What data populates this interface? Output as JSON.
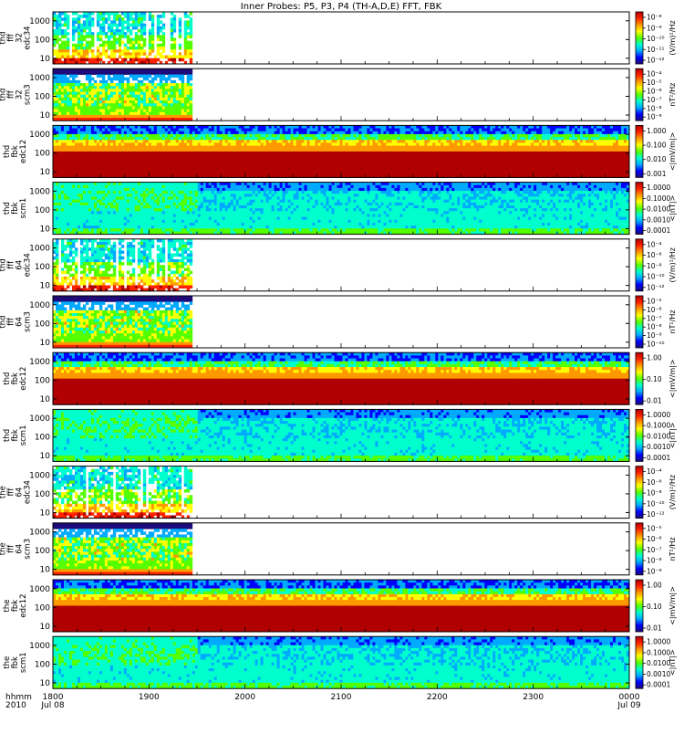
{
  "chart_data": {
    "type": "heatmap",
    "title": "Inner Probes: P5, P3, P4 (TH-A,D,E) FFT, FBK",
    "x_axis": {
      "row_labels": [
        "hhmm",
        "2010"
      ],
      "ticks": [
        {
          "time": "1800",
          "date": "Jul 08"
        },
        {
          "time": "1900",
          "date": ""
        },
        {
          "time": "2000",
          "date": ""
        },
        {
          "time": "2100",
          "date": ""
        },
        {
          "time": "2200",
          "date": ""
        },
        {
          "time": "2300",
          "date": ""
        },
        {
          "time": "0000",
          "date": "Jul 09"
        }
      ],
      "range_hours": [
        18.0,
        24.0
      ]
    },
    "panels": [
      {
        "ylabel": [
          "thd",
          "fff",
          "32",
          "edc34"
        ],
        "yticks": [
          "1000",
          "100",
          "10"
        ],
        "cbar_ticks": [
          "10⁻⁸",
          "10⁻⁹",
          "10⁻¹⁰",
          "10⁻¹¹",
          "10⁻¹²"
        ],
        "cbar_label": "(V/m)²/Hz",
        "data_end_hour": 19.45,
        "scale": "log",
        "style": "ffte"
      },
      {
        "ylabel": [
          "thd",
          "fff",
          "32",
          "scm3"
        ],
        "yticks": [
          "1000",
          "100",
          "10"
        ],
        "cbar_ticks": [
          "10⁻⁴",
          "10⁻⁵",
          "10⁻⁶",
          "10⁻⁷",
          "10⁻⁸",
          "10⁻⁹"
        ],
        "cbar_label": "nT²/Hz",
        "data_end_hour": 19.45,
        "scale": "log",
        "style": "ffts"
      },
      {
        "ylabel": [
          "thd",
          "fbk",
          "edc12"
        ],
        "yticks": [
          "1000",
          "100",
          "10"
        ],
        "cbar_ticks": [
          "1.000",
          "0.100",
          "0.010",
          "0.001"
        ],
        "cbar_label": "<|mV/m|>",
        "data_end_hour": 24.0,
        "scale": "log",
        "style": "fbke"
      },
      {
        "ylabel": [
          "thd",
          "fbk",
          "scm1"
        ],
        "yticks": [
          "1000",
          "100",
          "10"
        ],
        "cbar_ticks": [
          "1.0000",
          "0.1000",
          "0.0100",
          "0.0010",
          "0.0001"
        ],
        "cbar_label": "<|nT|>",
        "data_end_hour": 24.0,
        "scale": "log",
        "style": "fbks"
      },
      {
        "ylabel": [
          "thd",
          "fff",
          "64",
          "edc34"
        ],
        "yticks": [
          "1000",
          "100",
          "10"
        ],
        "cbar_ticks": [
          "10⁻⁴",
          "10⁻⁶",
          "10⁻⁸",
          "10⁻¹⁰",
          "10⁻¹²"
        ],
        "cbar_label": "(V/m)²/Hz",
        "data_end_hour": 19.45,
        "scale": "log",
        "style": "ffte"
      },
      {
        "ylabel": [
          "thd",
          "fff",
          "64",
          "scm3"
        ],
        "yticks": [
          "1000",
          "100",
          "10"
        ],
        "cbar_ticks": [
          "10⁻⁵",
          "10⁻⁶",
          "10⁻⁷",
          "10⁻⁸",
          "10⁻⁹",
          "10⁻¹⁰"
        ],
        "cbar_label": "nT²/Hz",
        "data_end_hour": 19.45,
        "scale": "log",
        "style": "ffts"
      },
      {
        "ylabel": [
          "thd",
          "fbk",
          "edc12"
        ],
        "yticks": [
          "1000",
          "100",
          "10"
        ],
        "cbar_ticks": [
          "1.00",
          "0.10",
          "0.01"
        ],
        "cbar_label": "<|mV/m|>",
        "data_end_hour": 24.0,
        "scale": "log",
        "style": "fbke"
      },
      {
        "ylabel": [
          "thd",
          "fbk",
          "scm1"
        ],
        "yticks": [
          "1000",
          "100",
          "10"
        ],
        "cbar_ticks": [
          "1.0000",
          "0.1000",
          "0.0100",
          "0.0010",
          "0.0001"
        ],
        "cbar_label": "<|nT|>",
        "data_end_hour": 24.0,
        "scale": "log",
        "style": "fbks"
      },
      {
        "ylabel": [
          "the",
          "fff",
          "64",
          "edc34"
        ],
        "yticks": [
          "1000",
          "100",
          "10"
        ],
        "cbar_ticks": [
          "10⁻⁴",
          "10⁻⁶",
          "10⁻⁸",
          "10⁻¹⁰",
          "10⁻¹²"
        ],
        "cbar_label": "(V/m)²/Hz",
        "data_end_hour": 19.45,
        "scale": "log",
        "style": "ffte"
      },
      {
        "ylabel": [
          "the",
          "fff",
          "64",
          "scm3"
        ],
        "yticks": [
          "1000",
          "100",
          "10"
        ],
        "cbar_ticks": [
          "10⁻⁵",
          "10⁻⁶",
          "10⁻⁷",
          "10⁻⁸",
          "10⁻⁹"
        ],
        "cbar_label": "nT²/Hz",
        "data_end_hour": 19.45,
        "scale": "log",
        "style": "ffts"
      },
      {
        "ylabel": [
          "the",
          "fbk",
          "edc12"
        ],
        "yticks": [
          "1000",
          "100",
          "10"
        ],
        "cbar_ticks": [
          "1.00",
          "0.10",
          "0.01"
        ],
        "cbar_label": "<|mV/m|>",
        "data_end_hour": 24.0,
        "scale": "log",
        "style": "fbke"
      },
      {
        "ylabel": [
          "the",
          "fbk",
          "scm1"
        ],
        "yticks": [
          "1000",
          "100",
          "10"
        ],
        "cbar_ticks": [
          "1.0000",
          "0.1000",
          "0.0100",
          "0.0010",
          "0.0001"
        ],
        "cbar_label": "<|nT|>",
        "data_end_hour": 24.0,
        "scale": "log",
        "style": "fbks"
      }
    ],
    "colorscale": [
      "#1e0a78",
      "#0000ff",
      "#00aaff",
      "#00ffcc",
      "#55ff00",
      "#ffff00",
      "#ff9900",
      "#ff2200",
      "#b00000"
    ]
  }
}
